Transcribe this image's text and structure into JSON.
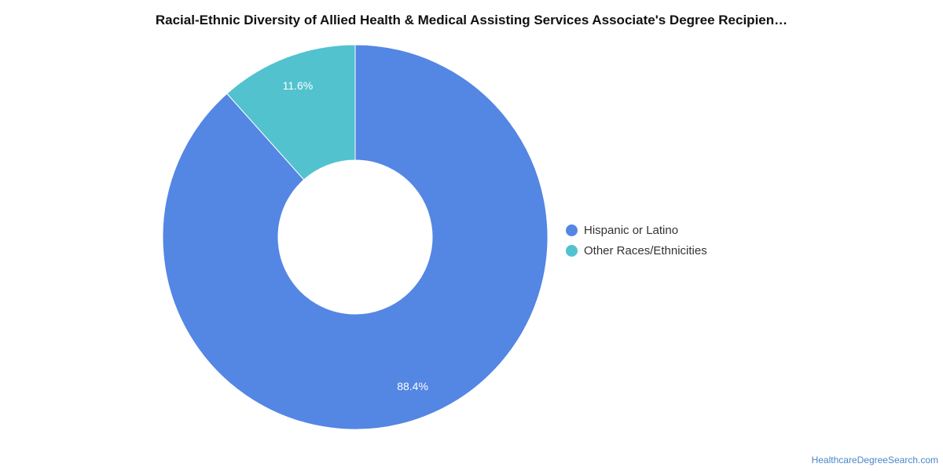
{
  "chart_data": {
    "type": "pie",
    "title": "Racial-Ethnic Diversity of Allied Health & Medical Assisting Services Associate's Degree Recipien…",
    "categories": [
      "Hispanic or Latino",
      "Other Races/Ethnicities"
    ],
    "values": [
      88.4,
      11.6
    ],
    "value_labels": [
      "88.4%",
      "11.6%"
    ],
    "colors": [
      "#5486e3",
      "#52c2cf"
    ],
    "donut": true,
    "legend": "right"
  },
  "source": "HealthcareDegreeSearch.com"
}
